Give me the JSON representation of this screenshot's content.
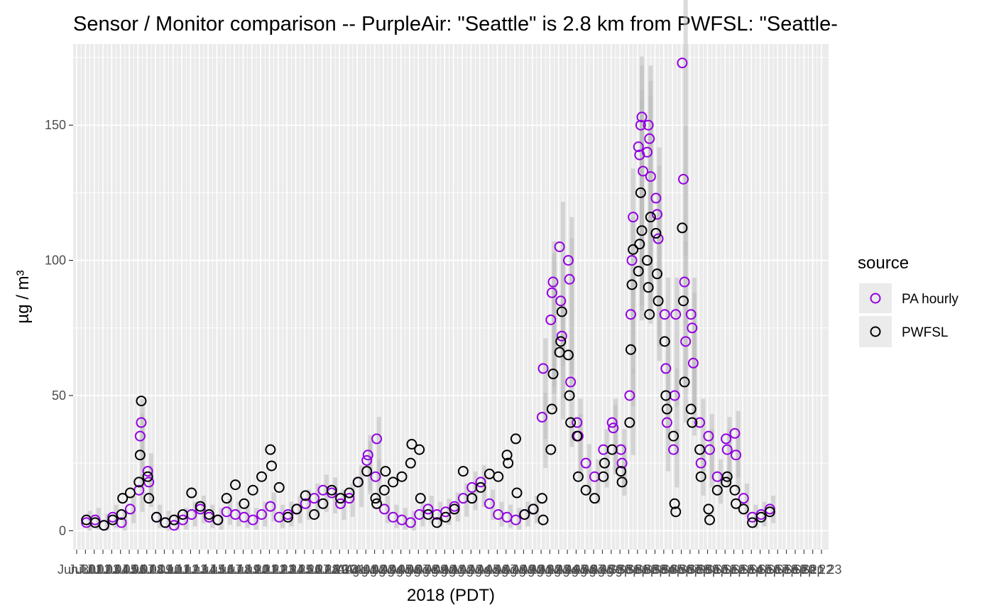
{
  "chart_data": {
    "type": "scatter",
    "title": "Sensor / Monitor comparison -- PurpleAir: \"Seattle\" is 2.8 km from PWFSL: \"Seattle-",
    "xlabel": "2018 (PDT)",
    "ylabel": "µg / m³",
    "ylim": [
      -7,
      180
    ],
    "xlim": [
      "2018-06-30",
      "2018-09-23"
    ],
    "x_tick_labels_overlapped": "Jun 30 … Sep 23",
    "x_ticks_first": "Jun 30",
    "x_ticks_last": "Sep 23",
    "y_ticks": [
      0,
      50,
      100,
      150
    ],
    "grid": true,
    "legend": {
      "title": "source",
      "placement": "right",
      "entries": [
        {
          "label": "PA hourly",
          "color": "#9300e0",
          "marker": "open-circle"
        },
        {
          "label": "PWFSL",
          "color": "#000000",
          "marker": "open-circle"
        }
      ]
    },
    "band_color": "#bdbdbd",
    "series": [
      {
        "name": "PA hourly",
        "color": "#9300e0",
        "points": [
          [
            "2018-07-01",
            3
          ],
          [
            "2018-07-02",
            4
          ],
          [
            "2018-07-03",
            2
          ],
          [
            "2018-07-04",
            5
          ],
          [
            "2018-07-05",
            3
          ],
          [
            "2018-07-06",
            8
          ],
          [
            "2018-07-07",
            15
          ],
          [
            "2018-07-07",
            35
          ],
          [
            "2018-07-07",
            40
          ],
          [
            "2018-07-08",
            22
          ],
          [
            "2018-07-08",
            18
          ],
          [
            "2018-07-09",
            5
          ],
          [
            "2018-07-10",
            3
          ],
          [
            "2018-07-11",
            2
          ],
          [
            "2018-07-12",
            4
          ],
          [
            "2018-07-13",
            6
          ],
          [
            "2018-07-14",
            8
          ],
          [
            "2018-07-15",
            5
          ],
          [
            "2018-07-16",
            4
          ],
          [
            "2018-07-17",
            7
          ],
          [
            "2018-07-18",
            6
          ],
          [
            "2018-07-19",
            5
          ],
          [
            "2018-07-20",
            4
          ],
          [
            "2018-07-21",
            6
          ],
          [
            "2018-07-22",
            9
          ],
          [
            "2018-07-23",
            5
          ],
          [
            "2018-07-24",
            6
          ],
          [
            "2018-07-25",
            8
          ],
          [
            "2018-07-26",
            10
          ],
          [
            "2018-07-27",
            12
          ],
          [
            "2018-07-28",
            15
          ],
          [
            "2018-07-29",
            14
          ],
          [
            "2018-07-30",
            10
          ],
          [
            "2018-07-31",
            12
          ],
          [
            "2018-08-01",
            18
          ],
          [
            "2018-08-02",
            26
          ],
          [
            "2018-08-02",
            28
          ],
          [
            "2018-08-03",
            20
          ],
          [
            "2018-08-03",
            34
          ],
          [
            "2018-08-04",
            8
          ],
          [
            "2018-08-05",
            5
          ],
          [
            "2018-08-06",
            4
          ],
          [
            "2018-08-07",
            3
          ],
          [
            "2018-08-08",
            6
          ],
          [
            "2018-08-09",
            8
          ],
          [
            "2018-08-10",
            6
          ],
          [
            "2018-08-11",
            7
          ],
          [
            "2018-08-12",
            9
          ],
          [
            "2018-08-13",
            12
          ],
          [
            "2018-08-14",
            16
          ],
          [
            "2018-08-15",
            18
          ],
          [
            "2018-08-16",
            10
          ],
          [
            "2018-08-17",
            6
          ],
          [
            "2018-08-18",
            5
          ],
          [
            "2018-08-19",
            4
          ],
          [
            "2018-08-20",
            6
          ],
          [
            "2018-08-21",
            8
          ],
          [
            "2018-08-22",
            42
          ],
          [
            "2018-08-22",
            60
          ],
          [
            "2018-08-23",
            78
          ],
          [
            "2018-08-23",
            88
          ],
          [
            "2018-08-23",
            92
          ],
          [
            "2018-08-24",
            105
          ],
          [
            "2018-08-24",
            85
          ],
          [
            "2018-08-24",
            72
          ],
          [
            "2018-08-25",
            100
          ],
          [
            "2018-08-25",
            93
          ],
          [
            "2018-08-25",
            55
          ],
          [
            "2018-08-26",
            40
          ],
          [
            "2018-08-26",
            35
          ],
          [
            "2018-08-27",
            25
          ],
          [
            "2018-08-28",
            20
          ],
          [
            "2018-08-29",
            30
          ],
          [
            "2018-08-30",
            40
          ],
          [
            "2018-08-30",
            38
          ],
          [
            "2018-08-31",
            30
          ],
          [
            "2018-08-31",
            25
          ],
          [
            "2018-09-01",
            50
          ],
          [
            "2018-09-01",
            80
          ],
          [
            "2018-09-01",
            100
          ],
          [
            "2018-09-01",
            116
          ],
          [
            "2018-09-02",
            142
          ],
          [
            "2018-09-02",
            139
          ],
          [
            "2018-09-02",
            150
          ],
          [
            "2018-09-02",
            153
          ],
          [
            "2018-09-02",
            133
          ],
          [
            "2018-09-03",
            140
          ],
          [
            "2018-09-03",
            150
          ],
          [
            "2018-09-03",
            145
          ],
          [
            "2018-09-03",
            131
          ],
          [
            "2018-09-04",
            123
          ],
          [
            "2018-09-04",
            117
          ],
          [
            "2018-09-04",
            108
          ],
          [
            "2018-09-05",
            80
          ],
          [
            "2018-09-05",
            60
          ],
          [
            "2018-09-05",
            40
          ],
          [
            "2018-09-06",
            30
          ],
          [
            "2018-09-06",
            50
          ],
          [
            "2018-09-06",
            80
          ],
          [
            "2018-09-07",
            173
          ],
          [
            "2018-09-07",
            130
          ],
          [
            "2018-09-07",
            92
          ],
          [
            "2018-09-07",
            70
          ],
          [
            "2018-09-08",
            80
          ],
          [
            "2018-09-08",
            75
          ],
          [
            "2018-09-08",
            62
          ],
          [
            "2018-09-09",
            40
          ],
          [
            "2018-09-09",
            25
          ],
          [
            "2018-09-10",
            35
          ],
          [
            "2018-09-10",
            30
          ],
          [
            "2018-09-11",
            20
          ],
          [
            "2018-09-12",
            34
          ],
          [
            "2018-09-12",
            30
          ],
          [
            "2018-09-13",
            36
          ],
          [
            "2018-09-13",
            28
          ],
          [
            "2018-09-14",
            12
          ],
          [
            "2018-09-15",
            5
          ],
          [
            "2018-09-16",
            6
          ],
          [
            "2018-09-17",
            8
          ]
        ]
      },
      {
        "name": "PWFSL",
        "color": "#000000",
        "points": [
          [
            "2018-07-01",
            4
          ],
          [
            "2018-07-02",
            3
          ],
          [
            "2018-07-03",
            2
          ],
          [
            "2018-07-04",
            4
          ],
          [
            "2018-07-05",
            6
          ],
          [
            "2018-07-05",
            12
          ],
          [
            "2018-07-06",
            14
          ],
          [
            "2018-07-07",
            18
          ],
          [
            "2018-07-07",
            28
          ],
          [
            "2018-07-07",
            48
          ],
          [
            "2018-07-08",
            20
          ],
          [
            "2018-07-08",
            12
          ],
          [
            "2018-07-09",
            5
          ],
          [
            "2018-07-10",
            3
          ],
          [
            "2018-07-11",
            4
          ],
          [
            "2018-07-12",
            6
          ],
          [
            "2018-07-13",
            14
          ],
          [
            "2018-07-14",
            9
          ],
          [
            "2018-07-15",
            6
          ],
          [
            "2018-07-16",
            4
          ],
          [
            "2018-07-17",
            12
          ],
          [
            "2018-07-18",
            17
          ],
          [
            "2018-07-19",
            10
          ],
          [
            "2018-07-20",
            15
          ],
          [
            "2018-07-21",
            20
          ],
          [
            "2018-07-22",
            30
          ],
          [
            "2018-07-22",
            24
          ],
          [
            "2018-07-23",
            16
          ],
          [
            "2018-07-24",
            5
          ],
          [
            "2018-07-25",
            8
          ],
          [
            "2018-07-26",
            13
          ],
          [
            "2018-07-27",
            6
          ],
          [
            "2018-07-28",
            10
          ],
          [
            "2018-07-29",
            15
          ],
          [
            "2018-07-30",
            12
          ],
          [
            "2018-07-31",
            14
          ],
          [
            "2018-08-01",
            18
          ],
          [
            "2018-08-02",
            22
          ],
          [
            "2018-08-03",
            12
          ],
          [
            "2018-08-03",
            10
          ],
          [
            "2018-08-04",
            15
          ],
          [
            "2018-08-04",
            22
          ],
          [
            "2018-08-05",
            18
          ],
          [
            "2018-08-06",
            20
          ],
          [
            "2018-08-07",
            25
          ],
          [
            "2018-08-07",
            32
          ],
          [
            "2018-08-08",
            30
          ],
          [
            "2018-08-08",
            12
          ],
          [
            "2018-08-09",
            6
          ],
          [
            "2018-08-10",
            3
          ],
          [
            "2018-08-11",
            5
          ],
          [
            "2018-08-12",
            8
          ],
          [
            "2018-08-13",
            22
          ],
          [
            "2018-08-14",
            12
          ],
          [
            "2018-08-15",
            16
          ],
          [
            "2018-08-16",
            21
          ],
          [
            "2018-08-17",
            20
          ],
          [
            "2018-08-18",
            28
          ],
          [
            "2018-08-18",
            25
          ],
          [
            "2018-08-19",
            34
          ],
          [
            "2018-08-19",
            14
          ],
          [
            "2018-08-20",
            6
          ],
          [
            "2018-08-21",
            8
          ],
          [
            "2018-08-22",
            12
          ],
          [
            "2018-08-22",
            4
          ],
          [
            "2018-08-23",
            30
          ],
          [
            "2018-08-23",
            45
          ],
          [
            "2018-08-23",
            58
          ],
          [
            "2018-08-24",
            66
          ],
          [
            "2018-08-24",
            70
          ],
          [
            "2018-08-24",
            81
          ],
          [
            "2018-08-25",
            65
          ],
          [
            "2018-08-25",
            50
          ],
          [
            "2018-08-25",
            40
          ],
          [
            "2018-08-26",
            35
          ],
          [
            "2018-08-26",
            20
          ],
          [
            "2018-08-27",
            15
          ],
          [
            "2018-08-28",
            12
          ],
          [
            "2018-08-29",
            20
          ],
          [
            "2018-08-29",
            25
          ],
          [
            "2018-08-30",
            30
          ],
          [
            "2018-08-31",
            22
          ],
          [
            "2018-08-31",
            18
          ],
          [
            "2018-09-01",
            40
          ],
          [
            "2018-09-01",
            67
          ],
          [
            "2018-09-01",
            91
          ],
          [
            "2018-09-01",
            104
          ],
          [
            "2018-09-02",
            96
          ],
          [
            "2018-09-02",
            106
          ],
          [
            "2018-09-02",
            125
          ],
          [
            "2018-09-02",
            111
          ],
          [
            "2018-09-03",
            100
          ],
          [
            "2018-09-03",
            90
          ],
          [
            "2018-09-03",
            80
          ],
          [
            "2018-09-03",
            116
          ],
          [
            "2018-09-04",
            110
          ],
          [
            "2018-09-04",
            95
          ],
          [
            "2018-09-04",
            85
          ],
          [
            "2018-09-05",
            70
          ],
          [
            "2018-09-05",
            50
          ],
          [
            "2018-09-05",
            45
          ],
          [
            "2018-09-06",
            35
          ],
          [
            "2018-09-06",
            10
          ],
          [
            "2018-09-06",
            7
          ],
          [
            "2018-09-07",
            112
          ],
          [
            "2018-09-07",
            85
          ],
          [
            "2018-09-07",
            55
          ],
          [
            "2018-09-08",
            45
          ],
          [
            "2018-09-08",
            40
          ],
          [
            "2018-09-09",
            30
          ],
          [
            "2018-09-09",
            20
          ],
          [
            "2018-09-10",
            8
          ],
          [
            "2018-09-10",
            4
          ],
          [
            "2018-09-11",
            15
          ],
          [
            "2018-09-12",
            18
          ],
          [
            "2018-09-12",
            20
          ],
          [
            "2018-09-13",
            15
          ],
          [
            "2018-09-13",
            10
          ],
          [
            "2018-09-14",
            8
          ],
          [
            "2018-09-15",
            3
          ],
          [
            "2018-09-16",
            5
          ],
          [
            "2018-09-17",
            7
          ]
        ]
      }
    ]
  }
}
